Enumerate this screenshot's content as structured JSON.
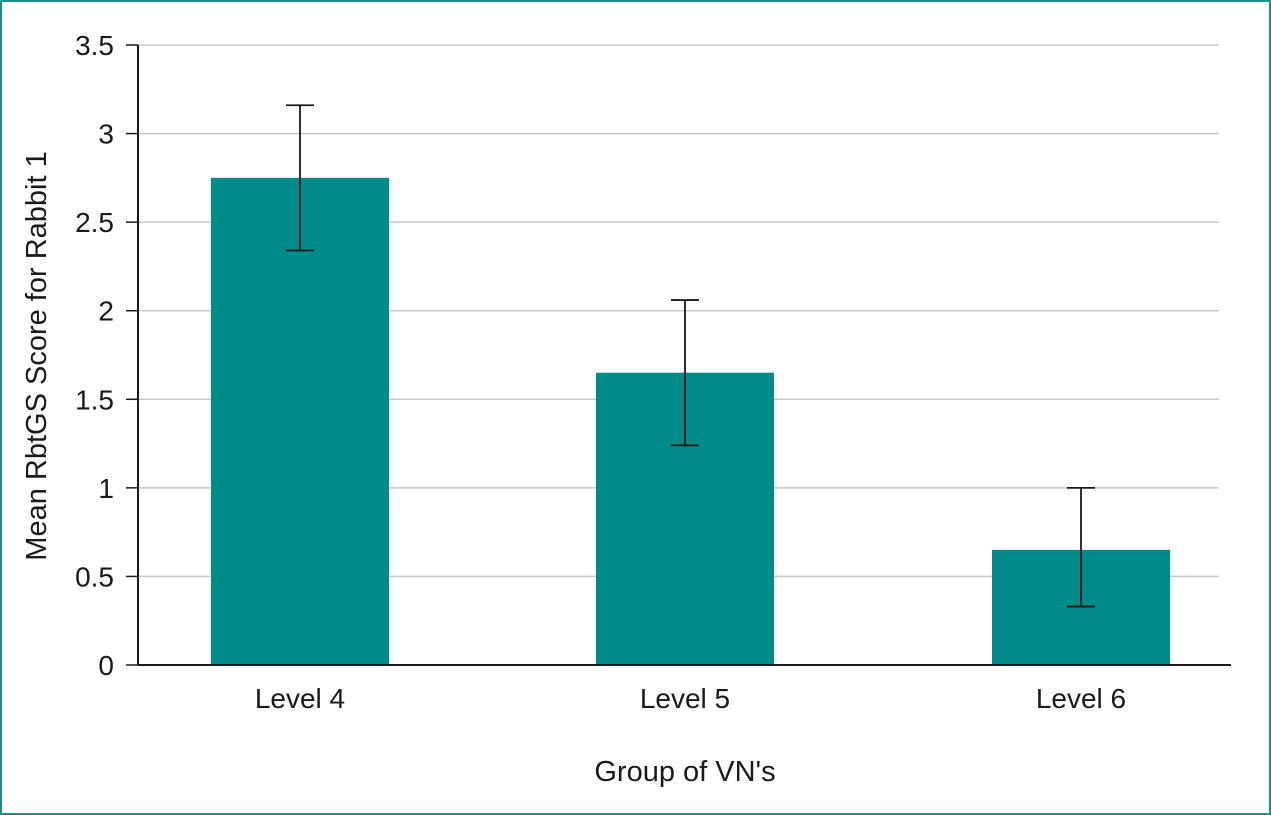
{
  "chart_data": {
    "type": "bar",
    "title": "",
    "xlabel": "Group of VN's",
    "ylabel": "Mean RbtGS Score for Rabbit 1",
    "categories": [
      "Level 4",
      "Level 5",
      "Level 6"
    ],
    "values": [
      2.75,
      1.65,
      0.65
    ],
    "error_upper": [
      3.16,
      2.06,
      1.0
    ],
    "error_lower": [
      2.34,
      1.24,
      0.33
    ],
    "ylim": [
      0,
      3.5
    ],
    "yticks": [
      0,
      0.5,
      1,
      1.5,
      2,
      2.5,
      3,
      3.5
    ],
    "ytick_labels": [
      "0",
      "0.5",
      "1",
      "1.5",
      "2",
      "2.5",
      "3",
      "3.5"
    ],
    "grid": true,
    "legend": "none",
    "colors": {
      "bar": "#008b8b",
      "grid": "#c8c8c8",
      "axis": "#1a1a1a",
      "frame": "#1a8f8d"
    }
  }
}
